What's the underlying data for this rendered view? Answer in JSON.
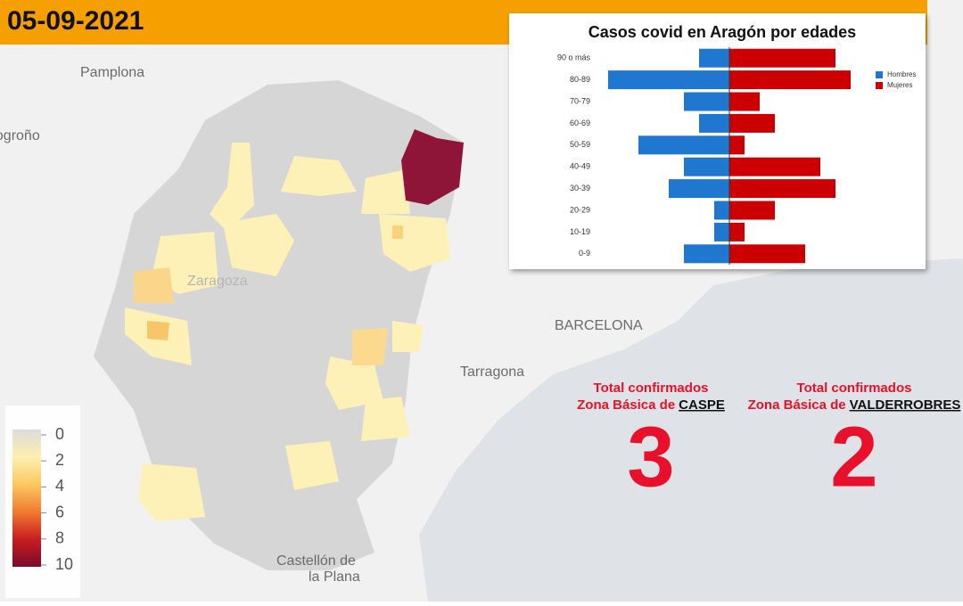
{
  "header": {
    "date": "05-09-2021"
  },
  "map": {
    "places": [
      "Pamplona",
      "Logroño",
      "Zaragoza",
      "BARCELONA",
      "Tarragona",
      "Castellón de",
      "la Plana"
    ]
  },
  "colorbar": {
    "ticks": [
      0,
      2,
      4,
      6,
      8,
      10
    ]
  },
  "zones": [
    {
      "line1": "Total confirmados",
      "line2": "Zona Básica de",
      "zone": "CASPE",
      "value": 3
    },
    {
      "line1": "Total confirmados",
      "line2": "Zona Básica de",
      "zone": "VALDERROBRES",
      "value": 2
    }
  ],
  "chart_data": {
    "type": "pyramid",
    "title": "Casos covid en Aragón por edades",
    "categories": [
      "90 o más",
      "80-89",
      "70-79",
      "60-69",
      "50-59",
      "40-49",
      "30-39",
      "20-29",
      "10-19",
      "0-9"
    ],
    "series": [
      {
        "name": "Hombres",
        "color": "#1f77d0",
        "values": [
          2,
          8,
          3,
          2,
          6,
          3,
          4,
          1,
          1,
          3
        ]
      },
      {
        "name": "Mujeres",
        "color": "#cc0000",
        "values": [
          7,
          8,
          2,
          3,
          1,
          6,
          7,
          3,
          1,
          5
        ]
      }
    ]
  }
}
